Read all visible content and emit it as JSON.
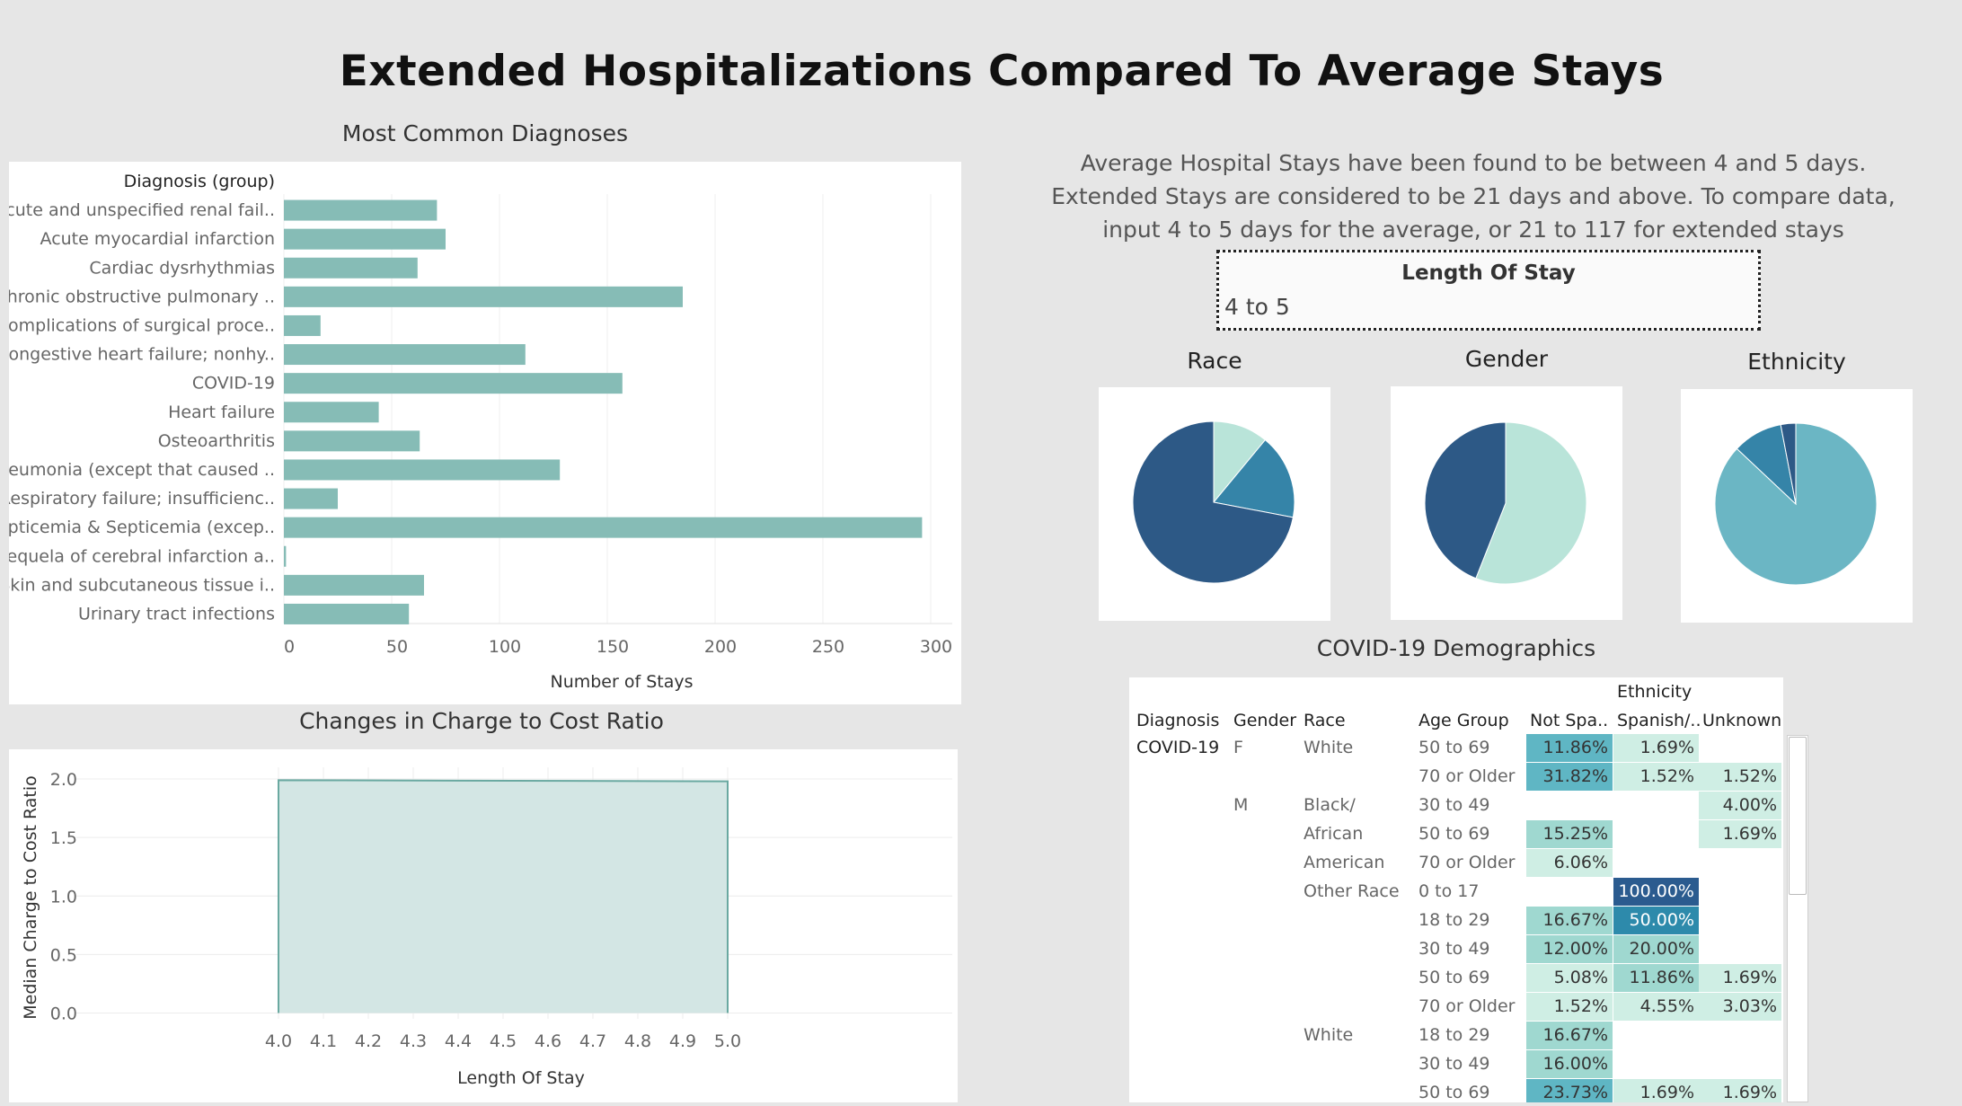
{
  "title": "Extended Hospitalizations Compared To Average Stays",
  "intro": "Average Hospital Stays have been found to be between 4 and 5 days.  Extended Stays are considered to be 21 days and above. To compare data, input 4 to 5 days for the average, or 21 to 117 for extended stays",
  "filter": {
    "title": "Length Of Stay",
    "value": "4 to 5"
  },
  "colors": {
    "bar": "#86bcb6",
    "area_fill": "#d3e6e4",
    "area_line": "#6aa9a1",
    "pie_dark": "#2d5986",
    "pie_mid": "#3584a8",
    "pie_light": "#b9e4d9",
    "pie_teal": "#6bb6c4",
    "heat_scale": [
      "#cfeee4",
      "#9fd8d0",
      "#5fb6c4",
      "#2d8aab",
      "#2b5b8f"
    ]
  },
  "chart_data": [
    {
      "type": "bar",
      "title": "Most Common Diagnoses",
      "category_header": "Diagnosis (group)",
      "xlabel": "Number of Stays",
      "xlim": [
        0,
        310
      ],
      "ticks": [
        0,
        50,
        100,
        150,
        200,
        250,
        300
      ],
      "categories": [
        "Acute and unspecified renal fail..",
        "Acute myocardial infarction",
        "Cardiac dysrhythmias",
        "Chronic obstructive pulmonary ..",
        "Complications of surgical proce..",
        "Congestive heart failure; nonhy..",
        "COVID-19",
        "Heart failure",
        "Osteoarthritis",
        "Pneumonia (except that caused ..",
        "Respiratory failure; insufficienc..",
        "Septicemia & Septicemia (excep..",
        "Sequela of cerebral infarction a..",
        "Skin and subcutaneous tissue i..",
        "Urinary tract infections"
      ],
      "values": [
        71,
        75,
        62,
        185,
        17,
        112,
        157,
        44,
        63,
        128,
        25,
        296,
        1,
        65,
        58
      ]
    },
    {
      "type": "area",
      "title": "Changes in Charge to Cost Ratio",
      "xlabel": "Length Of Stay",
      "ylabel": "Median Charge to Cost Ratio",
      "xlim": [
        3.55,
        5.5
      ],
      "ylim": [
        -0.05,
        2.1
      ],
      "xticks": [
        4.0,
        4.1,
        4.2,
        4.3,
        4.4,
        4.5,
        4.6,
        4.7,
        4.8,
        4.9,
        5.0
      ],
      "yticks": [
        0.0,
        0.5,
        1.0,
        1.5,
        2.0
      ],
      "x": [
        4.0,
        5.0
      ],
      "y": [
        1.99,
        1.98
      ],
      "grid": true
    },
    {
      "type": "pie",
      "title": "Race",
      "values": [
        0.11,
        0.17,
        0.72
      ],
      "color_keys": [
        "pie_light",
        "pie_mid",
        "pie_dark"
      ]
    },
    {
      "type": "pie",
      "title": "Gender",
      "values": [
        0.56,
        0.44
      ],
      "color_keys": [
        "pie_light",
        "pie_dark"
      ]
    },
    {
      "type": "pie",
      "title": "Ethnicity",
      "values": [
        0.87,
        0.1,
        0.03
      ],
      "color_keys": [
        "pie_teal",
        "pie_mid",
        "pie_dark"
      ]
    },
    {
      "type": "table",
      "title": "COVID-19 Demographics",
      "column_group": "Ethnicity",
      "headers": [
        "Diagnosis",
        "Gender",
        "Race",
        "Age Group",
        "Not Spa..",
        "Spanish/..",
        "Unknown"
      ],
      "diagnosis": "COVID-19",
      "rows": [
        {
          "gender": "F",
          "race": "White",
          "age": "50 to 69",
          "v": [
            "11.86%",
            "1.69%",
            ""
          ],
          "lv": [
            2,
            0,
            -1
          ]
        },
        {
          "gender": "",
          "race": "",
          "age": "70 or Older",
          "v": [
            "31.82%",
            "1.52%",
            "1.52%"
          ],
          "lv": [
            2,
            0,
            0
          ]
        },
        {
          "gender": "M",
          "race": "Black/",
          "age": "30 to 49",
          "v": [
            "",
            "",
            "4.00%"
          ],
          "lv": [
            -1,
            -1,
            0
          ]
        },
        {
          "gender": "",
          "race": "African",
          "age": "50 to 69",
          "v": [
            "15.25%",
            "",
            "1.69%"
          ],
          "lv": [
            1,
            -1,
            0
          ]
        },
        {
          "gender": "",
          "race": "American",
          "age": "70 or Older",
          "v": [
            "6.06%",
            "",
            ""
          ],
          "lv": [
            0,
            -1,
            -1
          ]
        },
        {
          "gender": "",
          "race": "Other Race",
          "age": "0 to 17",
          "v": [
            "",
            "100.00%",
            ""
          ],
          "lv": [
            -1,
            4,
            -1
          ]
        },
        {
          "gender": "",
          "race": "",
          "age": "18 to 29",
          "v": [
            "16.67%",
            "50.00%",
            ""
          ],
          "lv": [
            1,
            3,
            -1
          ]
        },
        {
          "gender": "",
          "race": "",
          "age": "30 to 49",
          "v": [
            "12.00%",
            "20.00%",
            ""
          ],
          "lv": [
            1,
            1,
            -1
          ]
        },
        {
          "gender": "",
          "race": "",
          "age": "50 to 69",
          "v": [
            "5.08%",
            "11.86%",
            "1.69%"
          ],
          "lv": [
            0,
            1,
            0
          ]
        },
        {
          "gender": "",
          "race": "",
          "age": "70 or Older",
          "v": [
            "1.52%",
            "4.55%",
            "3.03%"
          ],
          "lv": [
            0,
            0,
            0
          ]
        },
        {
          "gender": "",
          "race": "White",
          "age": "18 to 29",
          "v": [
            "16.67%",
            "",
            ""
          ],
          "lv": [
            1,
            -1,
            -1
          ]
        },
        {
          "gender": "",
          "race": "",
          "age": "30 to 49",
          "v": [
            "16.00%",
            "",
            ""
          ],
          "lv": [
            1,
            -1,
            -1
          ]
        },
        {
          "gender": "",
          "race": "",
          "age": "50 to 69",
          "v": [
            "23.73%",
            "1.69%",
            "1.69%"
          ],
          "lv": [
            2,
            0,
            0
          ]
        }
      ]
    }
  ]
}
